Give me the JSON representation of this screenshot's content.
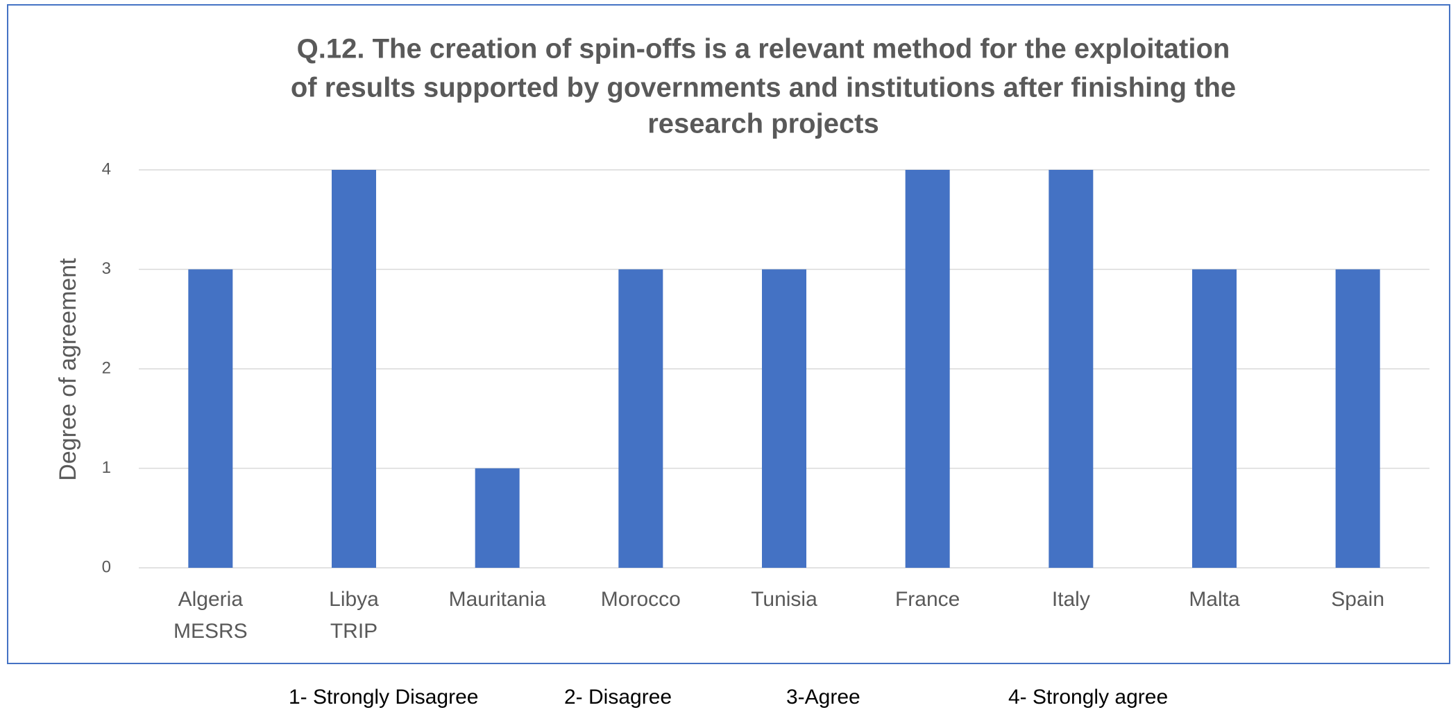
{
  "chart_data": {
    "type": "bar",
    "title": [
      "Q.12. The creation of spin-offs is a relevant method for the exploitation",
      "of results supported by governments and institutions after finishing the",
      "research projects"
    ],
    "y_label": "Degree of agreement",
    "categories": [
      "Algeria MESRS",
      "Libya TRIP",
      "Mauritania",
      "Morocco",
      "Tunisia",
      "France",
      "Italy",
      "Malta",
      "Spain"
    ],
    "values": [
      3,
      4,
      1,
      3,
      3,
      4,
      4,
      3,
      3
    ],
    "color": "#4472c4",
    "ylim": [
      0,
      4
    ],
    "yticks": [
      0,
      1,
      2,
      3,
      4
    ],
    "grid": true,
    "notes": [
      "1- Strongly Disagree",
      "2- Disagree",
      "3-Agree",
      "4- Strongly agree"
    ]
  }
}
